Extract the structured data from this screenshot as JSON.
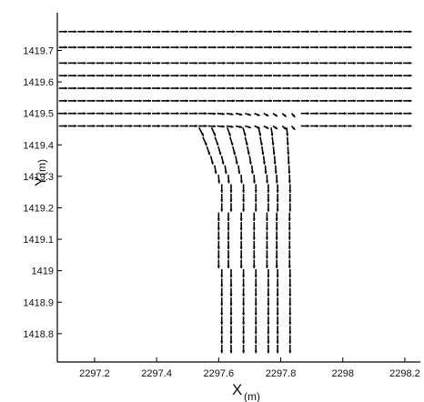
{
  "chart_data": {
    "type": "vector field",
    "title": "",
    "xlabel": "X",
    "xlabel_unit": "(m)",
    "ylabel": "Y",
    "ylabel_unit": "(m)",
    "xlim": [
      2297.08,
      2298.25
    ],
    "ylim": [
      1418.71,
      1419.82
    ],
    "x_ticks": [
      2297.2,
      2297.4,
      2297.6,
      2297.8,
      2298.0,
      2298.2
    ],
    "x_tick_labels": [
      "2297.2",
      "2297.4",
      "2297.6",
      "2297.8",
      "2298",
      "2298.2"
    ],
    "y_ticks": [
      1418.8,
      1418.9,
      1419.0,
      1419.1,
      1419.2,
      1419.3,
      1419.4,
      1419.5,
      1419.6,
      1419.7
    ],
    "y_tick_labels": [
      "1418.8",
      "1418.9",
      "1419",
      "1419.1",
      "1419.2",
      "1419.3",
      "1419.4",
      "1419.5",
      "1419.6",
      "1419.7"
    ],
    "color": "#000000",
    "grid": false,
    "legend": "none",
    "flow": {
      "main_channel_y": [
        1419.46,
        1419.5,
        1419.54,
        1419.58,
        1419.62,
        1419.66,
        1419.71,
        1419.76
      ],
      "main_channel_x_range": [
        2297.08,
        2298.25
      ],
      "branch_channel_x": [
        2297.61,
        2297.64,
        2297.68,
        2297.72,
        2297.76,
        2297.79,
        2297.83
      ],
      "branch_channel_y_range": [
        1418.71,
        1419.46
      ],
      "branch_junction_x": 2297.6,
      "branch_outlet_x": 2297.85,
      "arrow_spacing_x": 0.03,
      "arrow_spacing_y": 0.03
    }
  }
}
